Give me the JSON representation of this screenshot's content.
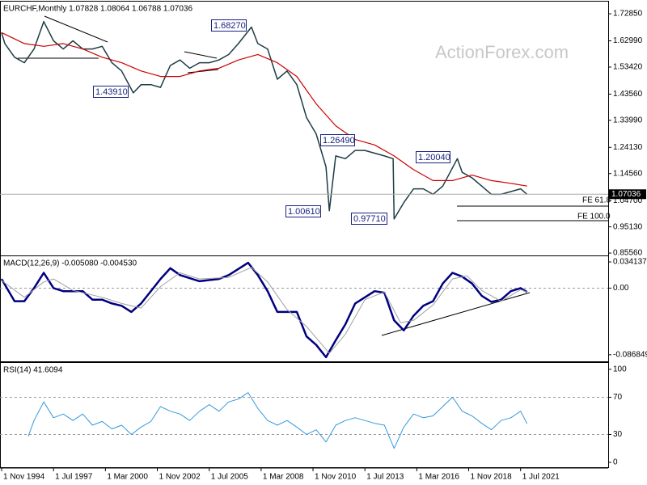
{
  "watermark": "ActionForex.com",
  "chart_data": [
    {
      "type": "line",
      "title": "EURCHF,Monthly 1.07828 1.08064 1.06788 1.07036",
      "xlim": [
        1994.75,
        2026.0
      ],
      "ylim": [
        0.847,
        1.77
      ],
      "yticks": [
        {
          "value": 1.7285,
          "label": "1.72850"
        },
        {
          "value": 1.6299,
          "label": "1.62990"
        },
        {
          "value": 1.5342,
          "label": "1.53420"
        },
        {
          "value": 1.4356,
          "label": "1.43560"
        },
        {
          "value": 1.3399,
          "label": "1.33990"
        },
        {
          "value": 1.2413,
          "label": "1.24130"
        },
        {
          "value": 1.1456,
          "label": "1.14560"
        },
        {
          "value": 1.047,
          "label": "1.04700"
        },
        {
          "value": 0.9513,
          "label": "0.95130"
        },
        {
          "value": 0.8556,
          "label": "0.85560"
        }
      ],
      "last": 1.07036,
      "annotations": [
        "1.68270",
        "1.43910",
        "1.26490",
        "1.00610",
        "0.97710",
        "1.20040"
      ],
      "levels": [
        "FE 61.8",
        "FE 100.0"
      ],
      "series": [
        {
          "name": "EURCHF",
          "color": "#1c3c44",
          "width": 1.5,
          "x": [
            1994.83,
            1995.0,
            1995.5,
            1996.0,
            1996.5,
            1997.0,
            1997.5,
            1998.0,
            1998.5,
            1999.0,
            1999.5,
            2000.0,
            2000.5,
            2001.0,
            2001.6,
            2002.0,
            2002.5,
            2003.0,
            2003.5,
            2004.0,
            2004.5,
            2005.0,
            2005.5,
            2006.0,
            2006.5,
            2007.0,
            2007.67,
            2008.0,
            2008.5,
            2009.0,
            2009.5,
            2010.0,
            2010.5,
            2011.0,
            2011.5,
            2011.67,
            2012.0,
            2012.5,
            2013.0,
            2013.5,
            2014.0,
            2014.5,
            2014.95,
            2015.0,
            2015.5,
            2016.0,
            2016.5,
            2017.0,
            2017.5,
            2018.25,
            2018.5,
            2019.0,
            2019.5,
            2020.0,
            2020.5,
            2021.0,
            2021.5,
            2021.83
          ],
          "values": [
            1.66,
            1.62,
            1.57,
            1.55,
            1.6,
            1.7,
            1.63,
            1.6,
            1.63,
            1.6,
            1.6,
            1.61,
            1.55,
            1.52,
            1.44,
            1.47,
            1.47,
            1.46,
            1.54,
            1.56,
            1.53,
            1.55,
            1.55,
            1.56,
            1.58,
            1.62,
            1.68,
            1.62,
            1.6,
            1.49,
            1.52,
            1.47,
            1.35,
            1.29,
            1.17,
            1.01,
            1.21,
            1.2,
            1.23,
            1.23,
            1.22,
            1.21,
            1.2,
            0.98,
            1.04,
            1.09,
            1.09,
            1.07,
            1.1,
            1.2,
            1.15,
            1.13,
            1.1,
            1.07,
            1.07,
            1.08,
            1.09,
            1.07
          ]
        },
        {
          "name": "MA",
          "color": "#cc0000",
          "width": 1.2,
          "x": [
            1994.83,
            1996.0,
            1997.0,
            1998.0,
            1999.0,
            2000.0,
            2001.0,
            2002.0,
            2003.0,
            2004.0,
            2005.0,
            2006.0,
            2007.0,
            2008.0,
            2009.0,
            2010.0,
            2011.0,
            2012.0,
            2013.0,
            2014.0,
            2015.0,
            2016.0,
            2017.0,
            2018.0,
            2019.0,
            2020.0,
            2021.0,
            2021.83
          ],
          "values": [
            1.66,
            1.62,
            1.61,
            1.62,
            1.6,
            1.57,
            1.55,
            1.52,
            1.5,
            1.5,
            1.52,
            1.53,
            1.56,
            1.58,
            1.55,
            1.5,
            1.4,
            1.32,
            1.27,
            1.25,
            1.21,
            1.16,
            1.12,
            1.12,
            1.14,
            1.12,
            1.11,
            1.1
          ]
        }
      ]
    },
    {
      "type": "line",
      "title": "MACD(12,26,9) -0.005080 -0.004530",
      "xlim": [
        1994.75,
        2026.0
      ],
      "ylim": [
        -0.0954,
        0.0405
      ],
      "yticks": [
        0.034137,
        {
          "value": 0,
          "label": "0.00"
        },
        -0.086849
      ],
      "hlines": [
        0
      ],
      "series": [
        {
          "name": "MACD",
          "color": "#000080",
          "width": 2.5,
          "x": [
            1994.83,
            1995.5,
            1996.0,
            1996.5,
            1997.0,
            1997.5,
            1998.0,
            1999.0,
            1999.5,
            2000.0,
            2000.5,
            2001.0,
            2001.5,
            2002.0,
            2003.0,
            2003.5,
            2004.0,
            2005.0,
            2006.0,
            2006.5,
            2007.5,
            2008.0,
            2008.5,
            2009.0,
            2010.0,
            2010.5,
            2011.0,
            2011.5,
            2012.0,
            2012.5,
            2013.0,
            2014.0,
            2014.5,
            2015.0,
            2015.5,
            2016.0,
            2016.5,
            2017.0,
            2017.5,
            2018.0,
            2018.5,
            2019.0,
            2019.5,
            2020.0,
            2020.5,
            2021.0,
            2021.5,
            2021.83
          ],
          "values": [
            0.012,
            -0.017,
            -0.017,
            0,
            0.02,
            0,
            -0.004,
            -0.004,
            -0.015,
            -0.015,
            -0.02,
            -0.023,
            -0.031,
            -0.02,
            0.012,
            0.026,
            0.017,
            0.009,
            0.012,
            0.017,
            0.033,
            0.017,
            -0.004,
            -0.031,
            -0.031,
            -0.063,
            -0.074,
            -0.09,
            -0.068,
            -0.047,
            -0.02,
            -0.004,
            -0.006,
            -0.042,
            -0.055,
            -0.036,
            -0.023,
            -0.017,
            0.006,
            0.02,
            0.015,
            0.006,
            -0.01,
            -0.018,
            -0.015,
            -0.004,
            0,
            -0.005
          ]
        },
        {
          "name": "Signal",
          "color": "#a0a0a0",
          "width": 1,
          "x": [
            1994.83,
            1996.0,
            1997.0,
            1997.5,
            1998.5,
            2000.0,
            2001.0,
            2002.0,
            2003.0,
            2004.0,
            2005.0,
            2006.5,
            2007.67,
            2008.5,
            2009.5,
            2010.5,
            2011.67,
            2012.5,
            2013.5,
            2014.5,
            2015.33,
            2016.0,
            2017.0,
            2018.0,
            2018.75,
            2019.5,
            2020.5,
            2021.5,
            2021.83
          ],
          "values": [
            0.01,
            -0.012,
            0.008,
            0.012,
            -0.003,
            -0.012,
            -0.02,
            -0.026,
            0.002,
            0.02,
            0.012,
            0.014,
            0.027,
            0.008,
            -0.028,
            -0.05,
            -0.085,
            -0.06,
            -0.015,
            -0.005,
            -0.045,
            -0.042,
            -0.022,
            0.012,
            0.016,
            -0.003,
            -0.017,
            -0.002,
            -0.005
          ]
        }
      ]
    },
    {
      "type": "line",
      "title": "RSI(14) 41.6094",
      "xlim": [
        1994.75,
        2026.0
      ],
      "ylim": [
        -5.2,
        106
      ],
      "yticks": [
        100,
        70,
        30,
        0
      ],
      "hlines": [
        70,
        30
      ],
      "xticks": [
        {
          "value": 1994.833,
          "label": "1 Nov 1994"
        },
        {
          "value": 1997.5,
          "label": "1 Jul 1997"
        },
        {
          "value": 2000.167,
          "label": "1 Mar 2000"
        },
        {
          "value": 2002.833,
          "label": "1 Nov 2002"
        },
        {
          "value": 2005.5,
          "label": "1 Jul 2005"
        },
        {
          "value": 2008.167,
          "label": "1 Mar 2008"
        },
        {
          "value": 2010.833,
          "label": "1 Nov 2010"
        },
        {
          "value": 2013.5,
          "label": "1 Jul 2013"
        },
        {
          "value": 2016.167,
          "label": "1 Mar 2016"
        },
        {
          "value": 2018.833,
          "label": "1 Nov 2018"
        },
        {
          "value": 2021.5,
          "label": "1 Jul 2021"
        }
      ],
      "series": [
        {
          "name": "RSI",
          "color": "#3399dd",
          "width": 1,
          "x": [
            1996.2,
            1996.5,
            1997.0,
            1997.5,
            1998.0,
            1998.5,
            1999.0,
            1999.5,
            2000.0,
            2000.5,
            2001.0,
            2001.5,
            2002.0,
            2002.5,
            2003.0,
            2003.5,
            2004.0,
            2004.5,
            2005.0,
            2005.5,
            2006.0,
            2006.5,
            2007.0,
            2007.5,
            2008.0,
            2008.5,
            2009.0,
            2009.5,
            2010.0,
            2010.5,
            2011.0,
            2011.5,
            2012.0,
            2012.5,
            2013.0,
            2013.5,
            2014.0,
            2014.5,
            2015.0,
            2015.5,
            2016.0,
            2016.5,
            2017.0,
            2017.5,
            2018.0,
            2018.5,
            2019.0,
            2019.5,
            2020.0,
            2020.5,
            2021.0,
            2021.5,
            2021.83
          ],
          "values": [
            28,
            45,
            65,
            48,
            52,
            45,
            52,
            40,
            44,
            36,
            40,
            30,
            38,
            44,
            60,
            55,
            52,
            45,
            55,
            62,
            55,
            65,
            68,
            75,
            58,
            45,
            40,
            45,
            38,
            30,
            35,
            22,
            40,
            45,
            48,
            45,
            42,
            40,
            15,
            38,
            52,
            48,
            50,
            60,
            70,
            55,
            50,
            42,
            35,
            45,
            48,
            55,
            41.6094
          ]
        }
      ]
    }
  ]
}
